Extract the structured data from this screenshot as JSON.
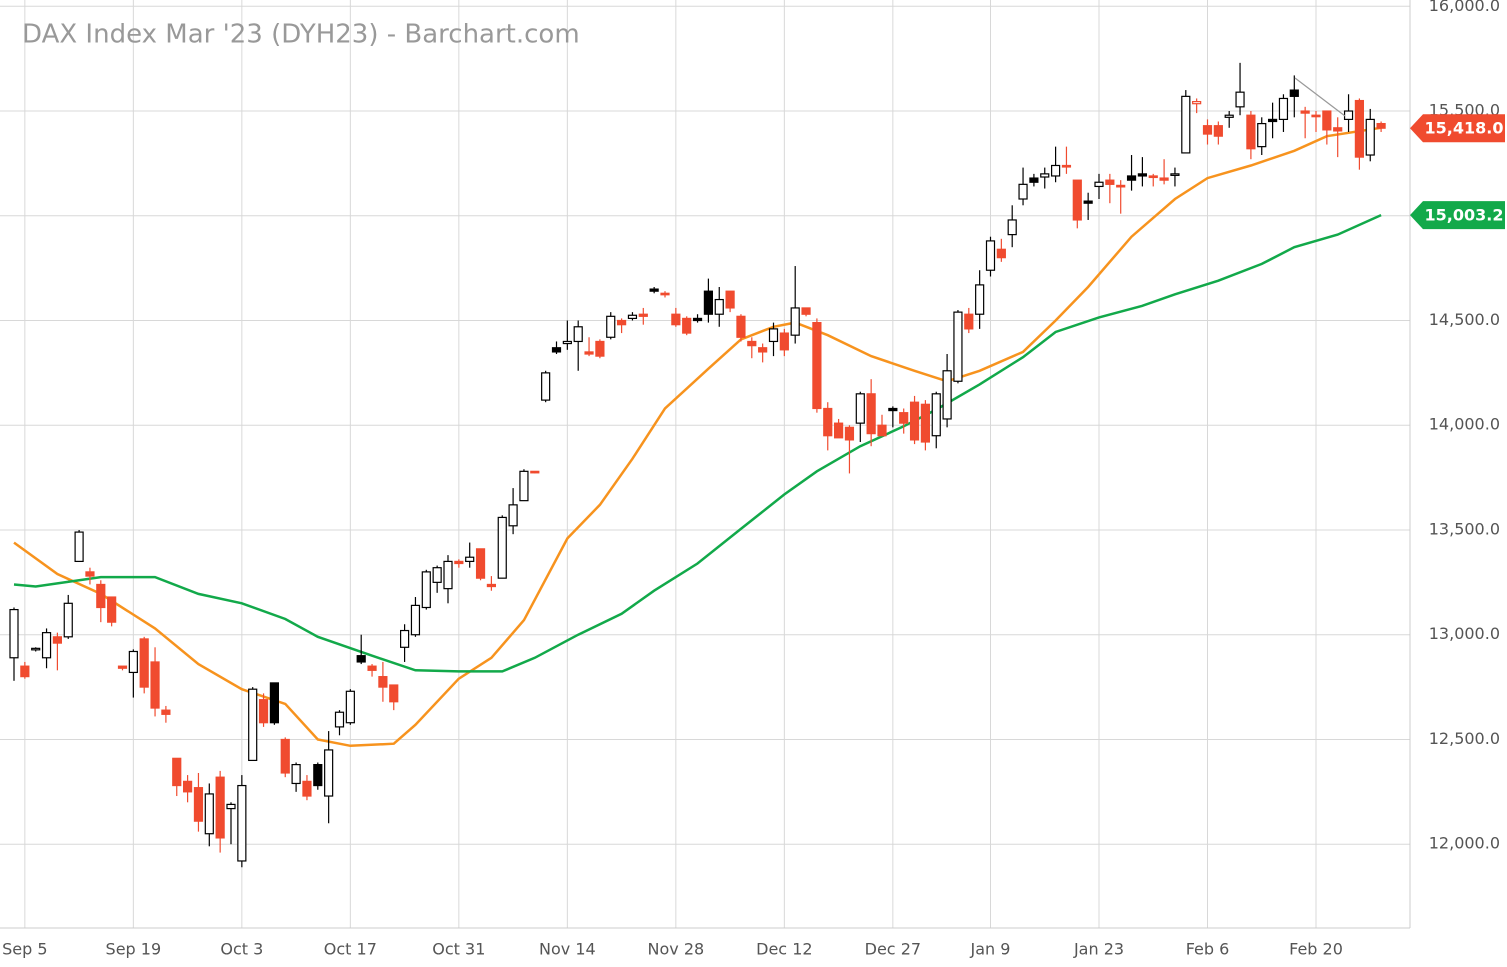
{
  "chart_data": {
    "type": "candlestick",
    "title": "DAX Index Mar '23 (DYH23) - Barchart.com",
    "categories": [
      null,
      "Sep 5",
      null,
      null,
      null,
      null,
      null,
      null,
      null,
      null,
      null,
      "Sep 19",
      null,
      null,
      null,
      null,
      null,
      null,
      null,
      null,
      null,
      "Oct 3",
      null,
      null,
      null,
      null,
      null,
      null,
      null,
      null,
      null,
      "Oct 17",
      null,
      null,
      null,
      null,
      null,
      null,
      null,
      null,
      null,
      "Oct 31",
      null,
      null,
      null,
      null,
      null,
      null,
      null,
      null,
      null,
      "Nov 14",
      null,
      null,
      null,
      null,
      null,
      null,
      null,
      null,
      null,
      "Nov 28",
      null,
      null,
      null,
      null,
      null,
      null,
      null,
      null,
      null,
      "Dec 12",
      null,
      null,
      null,
      null,
      null,
      null,
      null,
      null,
      null,
      "Dec 27",
      null,
      null,
      null,
      null,
      null,
      null,
      null,
      null,
      "Jan 9",
      null,
      null,
      null,
      null,
      null,
      null,
      null,
      null,
      null,
      "Jan 23",
      null,
      null,
      null,
      null,
      null,
      null,
      null,
      null,
      null,
      "Feb 6",
      null,
      null,
      null,
      null,
      null,
      null,
      null,
      null,
      null,
      "Feb 20",
      null,
      null,
      null,
      null,
      null,
      null
    ],
    "ohlc": [
      [
        12890,
        13130,
        12780,
        13120
      ],
      [
        12850,
        12870,
        12790,
        12800
      ],
      [
        12930,
        12940,
        12920,
        12935
      ],
      [
        12890,
        13030,
        12840,
        13010
      ],
      [
        12990,
        13010,
        12830,
        12960
      ],
      [
        12990,
        13190,
        12980,
        13150
      ],
      [
        13350,
        13500,
        13350,
        13490
      ],
      [
        13300,
        13320,
        13240,
        13280
      ],
      [
        13240,
        13260,
        13060,
        13130
      ],
      [
        13180,
        13180,
        13040,
        13060
      ],
      [
        12850,
        12850,
        12830,
        12840
      ],
      [
        12820,
        12930,
        12700,
        12920
      ],
      [
        12980,
        12990,
        12720,
        12750
      ],
      [
        12870,
        12940,
        12610,
        12650
      ],
      [
        12640,
        12660,
        12580,
        12620
      ],
      [
        12410,
        12410,
        12230,
        12280
      ],
      [
        12300,
        12330,
        12200,
        12250
      ],
      [
        12270,
        12340,
        12060,
        12110
      ],
      [
        12050,
        12290,
        11990,
        12240
      ],
      [
        12320,
        12350,
        11960,
        12030
      ],
      [
        12170,
        12200,
        12000,
        12190
      ],
      [
        11920,
        12330,
        11890,
        12280
      ],
      [
        12400,
        12750,
        12400,
        12740
      ],
      [
        12690,
        12720,
        12560,
        12580
      ],
      [
        12770,
        12770,
        12570,
        12580
      ],
      [
        12500,
        12510,
        12320,
        12340
      ],
      [
        12290,
        12390,
        12250,
        12380
      ],
      [
        12300,
        12330,
        12210,
        12230
      ],
      [
        12380,
        12390,
        12260,
        12280
      ],
      [
        12230,
        12540,
        12100,
        12450
      ],
      [
        12560,
        12640,
        12520,
        12630
      ],
      [
        12580,
        12740,
        12570,
        12730
      ],
      [
        12900,
        13000,
        12860,
        12870
      ],
      [
        12850,
        12860,
        12800,
        12830
      ],
      [
        12800,
        12870,
        12680,
        12750
      ],
      [
        12760,
        12760,
        12640,
        12680
      ],
      [
        12940,
        13050,
        12870,
        13020
      ],
      [
        13000,
        13180,
        12990,
        13140
      ],
      [
        13130,
        13310,
        13120,
        13300
      ],
      [
        13250,
        13330,
        13200,
        13320
      ],
      [
        13220,
        13380,
        13150,
        13350
      ],
      [
        13350,
        13360,
        13320,
        13340
      ],
      [
        13350,
        13440,
        13320,
        13370
      ],
      [
        13410,
        13410,
        13260,
        13270
      ],
      [
        13240,
        13280,
        13210,
        13230
      ],
      [
        13270,
        13570,
        13270,
        13560
      ],
      [
        13520,
        13700,
        13480,
        13620
      ],
      [
        13640,
        13790,
        13640,
        13780
      ],
      [
        13780,
        13780,
        13770,
        13775
      ],
      [
        14120,
        14260,
        14110,
        14250
      ],
      [
        14370,
        14400,
        14340,
        14350
      ],
      [
        14390,
        14500,
        14360,
        14400
      ],
      [
        14400,
        14500,
        14260,
        14470
      ],
      [
        14350,
        14420,
        14330,
        14340
      ],
      [
        14400,
        14410,
        14320,
        14330
      ],
      [
        14420,
        14540,
        14410,
        14520
      ],
      [
        14500,
        14510,
        14440,
        14480
      ],
      [
        14510,
        14540,
        14500,
        14525
      ],
      [
        14530,
        14560,
        14480,
        14520
      ],
      [
        14650,
        14660,
        14630,
        14640
      ],
      [
        14630,
        14640,
        14610,
        14625
      ],
      [
        14530,
        14560,
        14470,
        14480
      ],
      [
        14510,
        14520,
        14430,
        14440
      ],
      [
        14510,
        14530,
        14490,
        14500
      ],
      [
        14640,
        14700,
        14490,
        14530
      ],
      [
        14530,
        14660,
        14470,
        14600
      ],
      [
        14640,
        14640,
        14540,
        14560
      ],
      [
        14520,
        14530,
        14400,
        14420
      ],
      [
        14400,
        14420,
        14320,
        14380
      ],
      [
        14370,
        14390,
        14300,
        14350
      ],
      [
        14400,
        14490,
        14330,
        14460
      ],
      [
        14440,
        14460,
        14330,
        14360
      ],
      [
        14430,
        14760,
        14390,
        14560
      ],
      [
        14560,
        14560,
        14520,
        14530
      ],
      [
        14490,
        14510,
        14060,
        14080
      ],
      [
        14080,
        14110,
        13880,
        13950
      ],
      [
        14010,
        14030,
        13940,
        13940
      ],
      [
        13990,
        14000,
        13770,
        13930
      ],
      [
        14010,
        14160,
        13920,
        14150
      ],
      [
        14150,
        14220,
        13900,
        13960
      ],
      [
        14000,
        14050,
        13960,
        13950
      ],
      [
        14080,
        14090,
        13990,
        14070
      ],
      [
        14060,
        14080,
        13960,
        14010
      ],
      [
        14110,
        14140,
        13910,
        13930
      ],
      [
        14100,
        14120,
        13880,
        13920
      ],
      [
        13950,
        14160,
        13890,
        14150
      ],
      [
        14030,
        14340,
        13990,
        14260
      ],
      [
        14210,
        14550,
        14200,
        14540
      ],
      [
        14530,
        14560,
        14440,
        14460
      ],
      [
        14530,
        14740,
        14460,
        14670
      ],
      [
        14740,
        14900,
        14710,
        14880
      ],
      [
        14840,
        14890,
        14780,
        14800
      ],
      [
        14910,
        15050,
        14850,
        14980
      ],
      [
        15080,
        15230,
        15050,
        15150
      ],
      [
        15180,
        15200,
        15140,
        15160
      ],
      [
        15185,
        15230,
        15130,
        15200
      ],
      [
        15190,
        15330,
        15160,
        15240
      ],
      [
        15240,
        15330,
        15200,
        15235
      ],
      [
        15170,
        15170,
        14940,
        14980
      ],
      [
        15070,
        15110,
        14980,
        15060
      ],
      [
        15140,
        15200,
        15080,
        15160
      ],
      [
        15170,
        15200,
        15060,
        15150
      ],
      [
        15145,
        15170,
        15010,
        15140
      ],
      [
        15190,
        15290,
        15120,
        15170
      ],
      [
        15200,
        15280,
        15140,
        15190
      ],
      [
        15190,
        15200,
        15140,
        15185
      ],
      [
        15180,
        15270,
        15150,
        15170
      ],
      [
        15195,
        15230,
        15140,
        15200
      ],
      [
        15300,
        15600,
        15300,
        15570
      ],
      [
        15535,
        15560,
        15490,
        15545
      ],
      [
        15430,
        15460,
        15340,
        15390
      ],
      [
        15430,
        15450,
        15340,
        15380
      ],
      [
        15470,
        15500,
        15420,
        15480
      ],
      [
        15520,
        15730,
        15480,
        15590
      ],
      [
        15480,
        15500,
        15270,
        15320
      ],
      [
        15330,
        15470,
        15290,
        15440
      ],
      [
        15460,
        15540,
        15370,
        15450
      ],
      [
        15460,
        15580,
        15400,
        15560
      ],
      [
        15600,
        15670,
        15470,
        15570
      ],
      [
        15500,
        15520,
        15370,
        15490
      ],
      [
        15480,
        15500,
        15400,
        15475
      ],
      [
        15500,
        15500,
        15340,
        15410
      ],
      [
        15420,
        15470,
        15280,
        15405
      ],
      [
        15460,
        15580,
        15400,
        15500
      ],
      [
        15550,
        15560,
        15220,
        15280
      ],
      [
        15290,
        15510,
        15260,
        15460
      ],
      [
        15440,
        15450,
        15400,
        15418
      ]
    ],
    "up_color": "#000000",
    "down_color": "#f04b2f",
    "lines": [
      {
        "color": "#f7931e",
        "x": [
          0,
          4,
          8,
          13,
          17,
          21,
          25,
          28,
          31,
          35,
          37,
          41,
          44,
          47,
          51,
          54,
          57,
          60,
          64,
          67,
          70,
          72,
          75,
          79,
          83,
          86,
          89,
          93,
          96,
          99,
          103,
          107,
          110,
          114,
          118,
          121,
          126
        ],
        "values": [
          13440,
          13290,
          13195,
          13030,
          12860,
          12740,
          12670,
          12500,
          12470,
          12480,
          12570,
          12790,
          12890,
          13070,
          13460,
          13620,
          13840,
          14080,
          14270,
          14410,
          14470,
          14490,
          14430,
          14330,
          14260,
          14210,
          14260,
          14350,
          14500,
          14660,
          14900,
          15080,
          15180,
          15240,
          15310,
          15380,
          15420
        ]
      },
      {
        "color": "#12a94a",
        "x": [
          0,
          2,
          8,
          13,
          17,
          21,
          25,
          28,
          33,
          37,
          41,
          45,
          48,
          52,
          56,
          59,
          63,
          67,
          71,
          74,
          78,
          82,
          85,
          89,
          93,
          96,
          100,
          104,
          107,
          111,
          115,
          118,
          122,
          126
        ],
        "values": [
          13240,
          13230,
          13275,
          13275,
          13195,
          13150,
          13075,
          12990,
          12900,
          12830,
          12825,
          12825,
          12890,
          13000,
          13100,
          13210,
          13340,
          13505,
          13670,
          13780,
          13900,
          13995,
          14075,
          14195,
          14325,
          14445,
          14515,
          14570,
          14625,
          14690,
          14770,
          14850,
          14910,
          15003.2
        ]
      }
    ],
    "price_tags": [
      {
        "value": 15418,
        "label": "15,418.0",
        "color": "#f04b2f"
      },
      {
        "value": 15003.2,
        "label": "15,003.2",
        "color": "#12a94a"
      }
    ],
    "ylim": [
      11600,
      16030
    ],
    "yticks": [
      {
        "value": 12000,
        "label": "12,000.0"
      },
      {
        "value": 12500,
        "label": "12,500.0"
      },
      {
        "value": 13000,
        "label": "13,000.0"
      },
      {
        "value": 13500,
        "label": "13,500.0"
      },
      {
        "value": 14000,
        "label": "14,000.0"
      },
      {
        "value": 14500,
        "label": "14,500.0"
      },
      {
        "value": 15000,
        "label": "15,000.0"
      },
      {
        "value": 15500,
        "label": "15,500.0"
      },
      {
        "value": 16000,
        "label": "16,000.0"
      }
    ],
    "grid": true
  }
}
